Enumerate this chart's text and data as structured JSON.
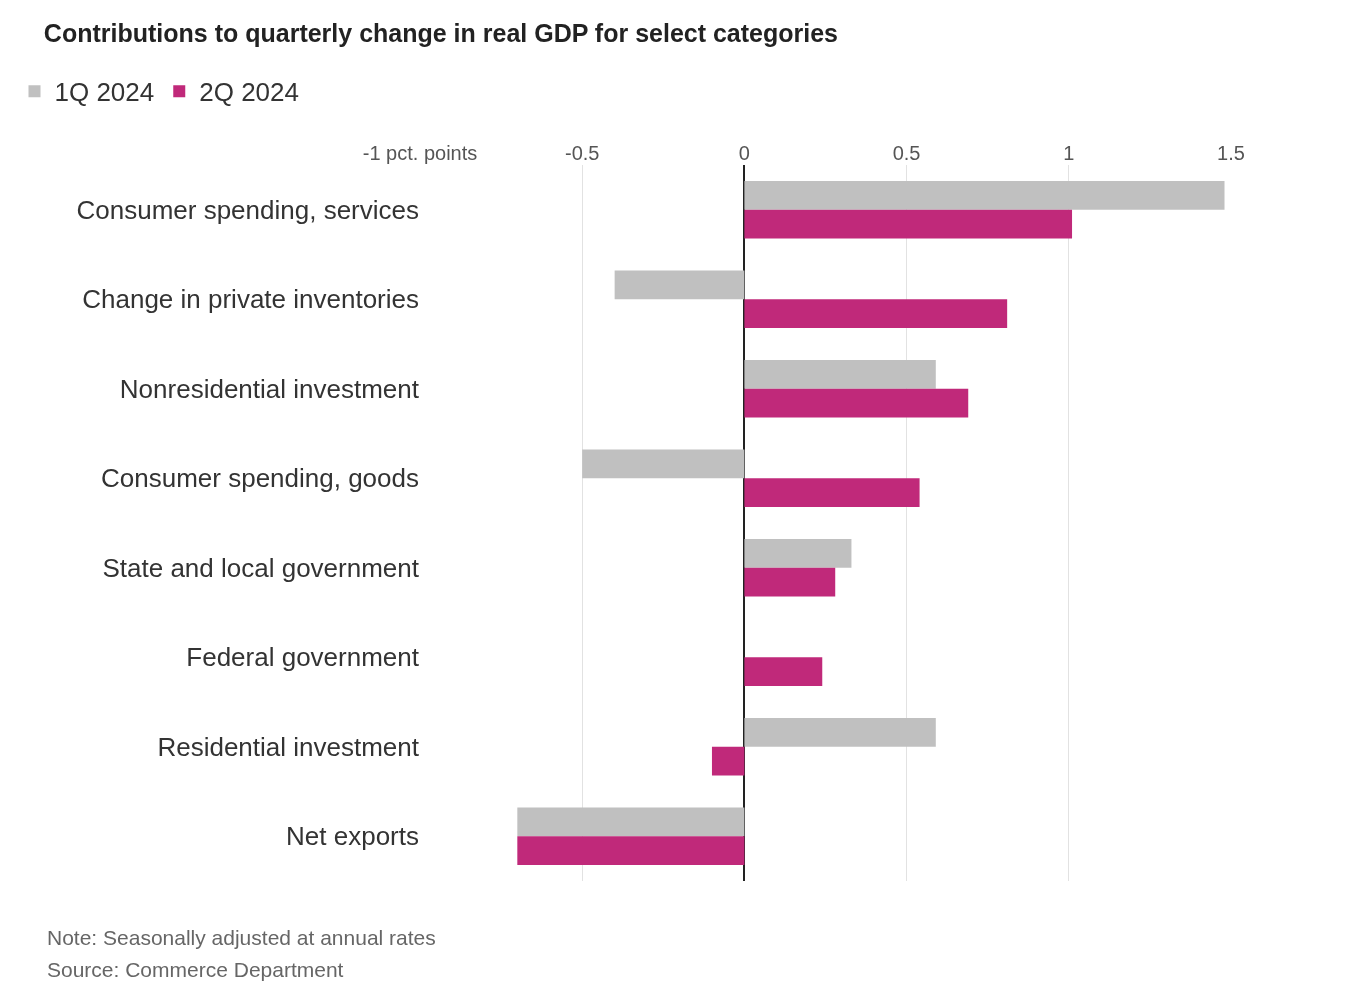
{
  "chart_data": {
    "type": "bar",
    "orientation": "horizontal",
    "title": "Contributions to quarterly change in real GDP for select categories",
    "categories": [
      "Consumer spending, services",
      "Change in private inventories",
      "Nonresidential investment",
      "Consumer spending, goods",
      "State and local government",
      "Federal government",
      "Residential investment",
      "Net exports"
    ],
    "series": [
      {
        "name": "1Q 2024",
        "color": "#c0c0c0",
        "values": [
          1.48,
          -0.4,
          0.59,
          -0.5,
          0.33,
          0.0,
          0.59,
          -0.7
        ]
      },
      {
        "name": "2Q 2024",
        "color": "#c0297a",
        "values": [
          1.01,
          0.81,
          0.69,
          0.54,
          0.28,
          0.24,
          -0.1,
          -0.7
        ]
      }
    ],
    "xlim": [
      -1,
      1.5
    ],
    "xticks": [
      {
        "value": -1,
        "label": "-1 pct. points"
      },
      -0.5,
      0,
      0.5,
      1,
      1.5
    ],
    "grid": "x",
    "legend": "top left",
    "annotations": [
      "Note: Seasonally adjusted at annual rates",
      "Source: Commerce Department"
    ]
  }
}
